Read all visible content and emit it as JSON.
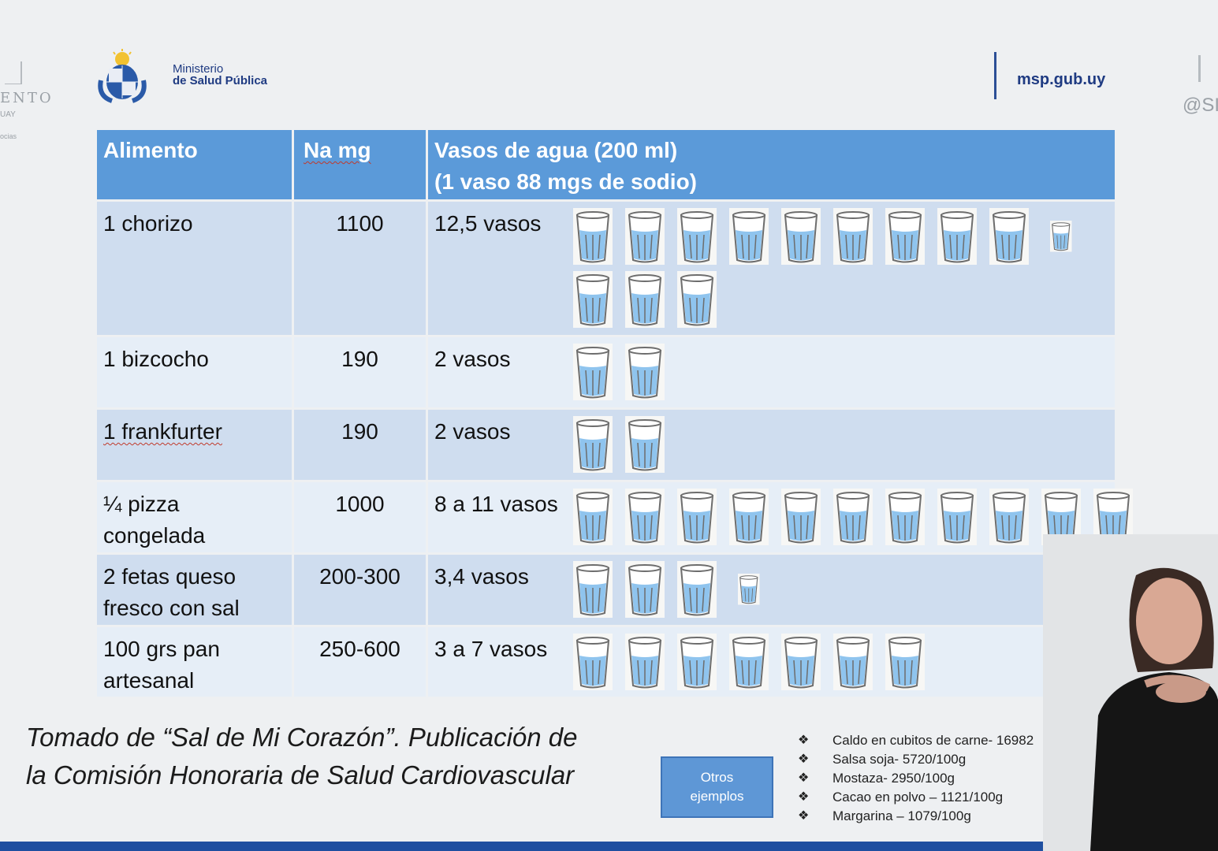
{
  "brand": {
    "ministry_line1": "Ministerio",
    "ministry_line2": "de Salud Pública",
    "website": "msp.gub.uy",
    "left_ghost_text": "ENTO",
    "left_ghost_sub": "UAY",
    "left_ghost_sub2": "ocias",
    "right_ghost_text": "@SI",
    "primary_color": "#1f3b82",
    "table_header_color": "#5b9ad9"
  },
  "table": {
    "headers": {
      "food": "Alimento",
      "na": "Na  mg",
      "glasses_line1": "Vasos de agua (200 ml)",
      "glasses_line2": "(1 vaso 88 mgs de sodio)"
    },
    "rows": [
      {
        "food": "1 chorizo",
        "na_mg": "1100",
        "glasses_text": "12,5 vasos",
        "glass_count": 12.5
      },
      {
        "food": "1 bizcocho",
        "na_mg": "190",
        "glasses_text": "2 vasos",
        "glass_count": 2
      },
      {
        "food": "1 frankfurter",
        "na_mg": "190",
        "glasses_text": "2 vasos",
        "glass_count": 2
      },
      {
        "food_line1": "¼ pizza",
        "food_line2": "congelada",
        "na_mg": "1000",
        "glasses_text": "8 a 11 vasos",
        "glass_count": 11
      },
      {
        "food_line1": "2 fetas queso",
        "food_line2": "fresco con sal",
        "na_mg": "200-300",
        "glasses_text": "3,4 vasos",
        "glass_count": 3.4
      },
      {
        "food_line1": "100 grs pan",
        "food_line2": "artesanal",
        "na_mg": "250-600",
        "glasses_text": "3 a 7 vasos",
        "glass_count": 7
      }
    ]
  },
  "credit": {
    "line1": "Tomado de “Sal de Mi Corazón”. Publicación de",
    "line2": "la Comisión Honoraria de Salud Cardiovascular"
  },
  "button": {
    "line1": "Otros",
    "line2": "ejemplos"
  },
  "examples": [
    "Caldo en cubitos de carne- 16982",
    "Salsa soja- 5720/100g",
    "Mostaza- 2950/100g",
    "Cacao en polvo – 1121/100g",
    "Margarina – 1079/100g"
  ]
}
